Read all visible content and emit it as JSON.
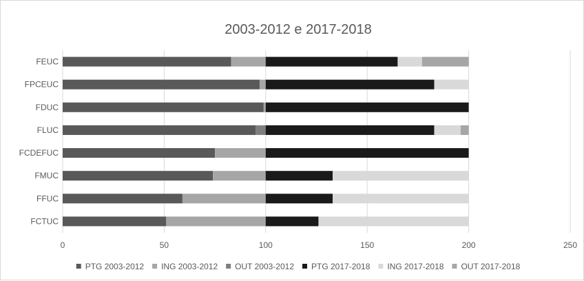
{
  "chart_data": {
    "type": "bar",
    "orientation": "horizontal",
    "stacked": true,
    "title": "2003-2012 e 2017-2018",
    "categories": [
      "FEUC",
      "FPCEUC",
      "FDUC",
      "FLUC",
      "FCDEFUC",
      "FMUC",
      "FFUC",
      "FCTUC"
    ],
    "xlim": [
      0,
      250
    ],
    "xticks": [
      0,
      50,
      100,
      150,
      200,
      250
    ],
    "grid": true,
    "legend_position": "bottom",
    "series": [
      {
        "name": "PTG 2003-2012",
        "color": "#595959",
        "values": [
          83,
          97,
          99,
          95,
          75,
          74,
          59,
          51
        ]
      },
      {
        "name": "ING 2003-2012",
        "color": "#a6a6a6",
        "values": [
          17,
          3,
          1,
          0,
          25,
          26,
          41,
          49
        ]
      },
      {
        "name": "OUT 2003-2012",
        "color": "#7f7f7f",
        "values": [
          0,
          0,
          0,
          5,
          0,
          0,
          0,
          0
        ]
      },
      {
        "name": "PTG 2017-2018",
        "color": "#1a1a1a",
        "values": [
          65,
          83,
          100,
          83,
          100,
          33,
          33,
          26
        ]
      },
      {
        "name": "ING 2017-2018",
        "color": "#d9d9d9",
        "values": [
          12,
          17,
          0,
          13,
          0,
          67,
          67,
          74
        ]
      },
      {
        "name": "OUT 2017-2018",
        "color": "#a6a6a6",
        "values": [
          23,
          0,
          0,
          4,
          0,
          0,
          0,
          0
        ]
      }
    ]
  }
}
